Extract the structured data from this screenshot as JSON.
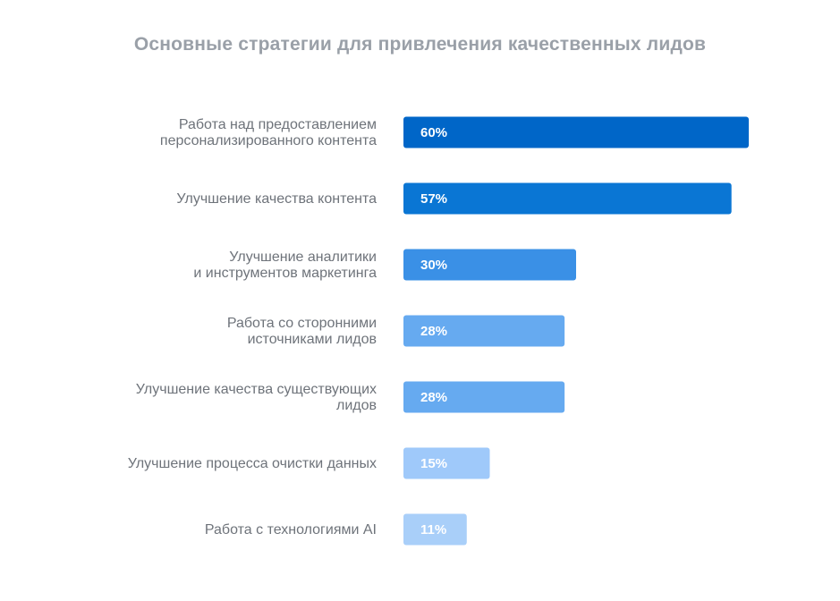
{
  "chart_data": {
    "type": "bar",
    "orientation": "horizontal",
    "title": "Основные стратегии для привлечения качественных лидов",
    "categories": [
      [
        "Работа над предоставлением",
        "персонализированного контента"
      ],
      [
        "Улучшение качества контента"
      ],
      [
        "Улучшение аналитики",
        "и инструментов маркетинга"
      ],
      [
        "Работа со сторонними",
        "источниками лидов"
      ],
      [
        "Улучшение качества существующих",
        "лидов"
      ],
      [
        "Улучшение процесса очистки данных"
      ],
      [
        "Работа с технологиями AI"
      ]
    ],
    "values": [
      60,
      57,
      30,
      28,
      28,
      15,
      11
    ],
    "value_labels": [
      "60%",
      "57%",
      "30%",
      "28%",
      "28%",
      "15%",
      "11%"
    ],
    "colors": [
      "#0066c8",
      "#0a76d4",
      "#3a90e6",
      "#66aaf0",
      "#66aaf0",
      "#9fc9fa",
      "#a9cff9"
    ],
    "xlim": [
      0,
      60
    ],
    "grid": false,
    "legend": "none"
  }
}
